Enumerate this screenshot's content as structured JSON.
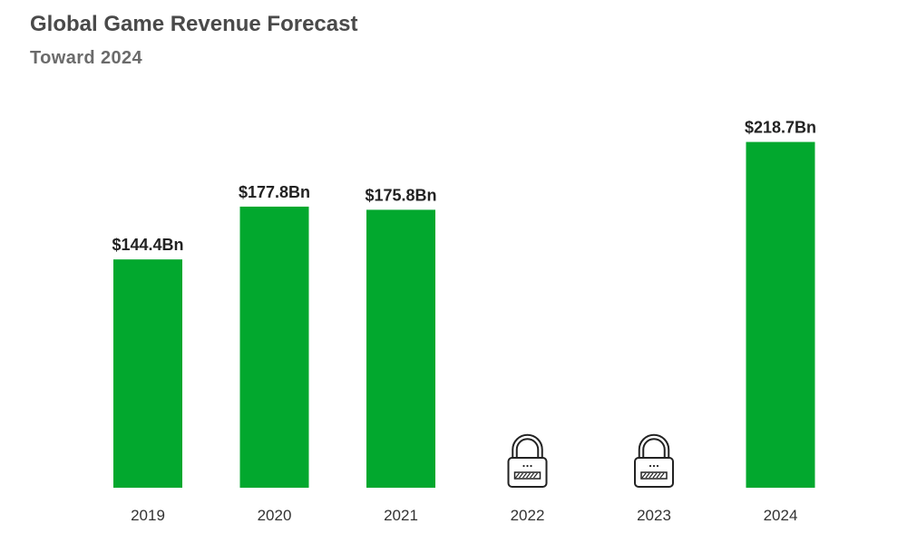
{
  "chart_data": {
    "type": "bar",
    "title": "Global Game Revenue Forecast",
    "subtitle": "Toward 2024",
    "categories": [
      "2019",
      "2020",
      "2021",
      "2022",
      "2023",
      "2024"
    ],
    "values": [
      144.4,
      177.8,
      175.8,
      null,
      null,
      218.7
    ],
    "data_labels": [
      "$144.4Bn",
      "$177.8Bn",
      "$175.8Bn",
      null,
      null,
      "$218.7Bn"
    ],
    "locked": [
      false,
      false,
      false,
      true,
      true,
      false
    ],
    "locked_icon": "lock-icon",
    "ylim": [
      0,
      250
    ],
    "grid": false,
    "legend": false,
    "bar_color": "#02a82e"
  }
}
